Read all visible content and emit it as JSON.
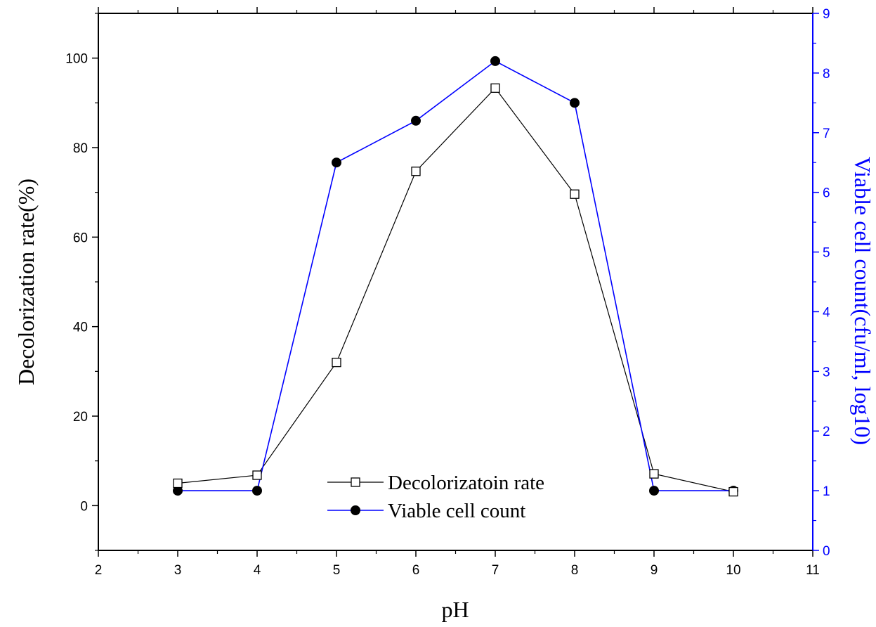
{
  "chart_data": {
    "type": "line",
    "title": "",
    "xlabel": "pH",
    "ylabel": "Decolorization rate(%)",
    "y2label": "Viable cell count(cfu/ml, log10)",
    "xlim": [
      2,
      11
    ],
    "ylim": [
      -10,
      110
    ],
    "y2lim": [
      0,
      9
    ],
    "x_ticks": [
      "2",
      "3",
      "4",
      "5",
      "6",
      "7",
      "8",
      "9",
      "10",
      "11"
    ],
    "y_ticks": [
      "0",
      "20",
      "40",
      "60",
      "80",
      "100"
    ],
    "y2_ticks": [
      "0",
      "1",
      "2",
      "3",
      "4",
      "5",
      "6",
      "7",
      "8",
      "9"
    ],
    "x": [
      3,
      4,
      5,
      6,
      7,
      8,
      9,
      10
    ],
    "grid": false,
    "legend_position": "bottom-center",
    "series": [
      {
        "name": "Decolorizatoin rate",
        "axis": "left",
        "marker": "open-square",
        "color": "#000000",
        "values": [
          5,
          6.8,
          32,
          74.7,
          93.3,
          69.6,
          7.1,
          3.1
        ]
      },
      {
        "name": "Viable cell count",
        "axis": "right",
        "marker": "filled-circle",
        "color": "#0000ff",
        "values": [
          1,
          1,
          6.5,
          7.2,
          8.2,
          7.5,
          1,
          1
        ]
      }
    ],
    "colors": {
      "left_axis": "#000000",
      "right_axis": "#0000ff"
    }
  }
}
